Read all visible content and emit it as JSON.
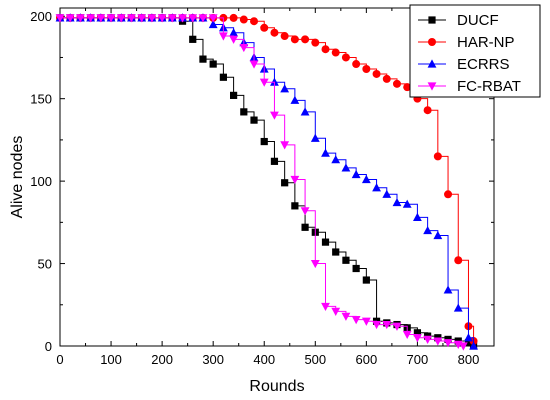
{
  "chart_data": {
    "type": "line",
    "xlabel": "Rounds",
    "ylabel": "Alive nodes",
    "xlim": [
      0,
      850
    ],
    "ylim": [
      0,
      205
    ],
    "x_ticks": [
      0,
      100,
      200,
      300,
      400,
      500,
      600,
      700,
      800
    ],
    "y_ticks": [
      0,
      50,
      100,
      150,
      200
    ],
    "grid": false,
    "legend_position": "top-right",
    "series": [
      {
        "name": "DUCF",
        "color": "#000000",
        "marker": "square",
        "points": [
          [
            0,
            199
          ],
          [
            20,
            199
          ],
          [
            40,
            199
          ],
          [
            60,
            199
          ],
          [
            80,
            199
          ],
          [
            100,
            199
          ],
          [
            120,
            199
          ],
          [
            140,
            199
          ],
          [
            160,
            199
          ],
          [
            180,
            199
          ],
          [
            200,
            199
          ],
          [
            220,
            199
          ],
          [
            240,
            197
          ],
          [
            260,
            186
          ],
          [
            280,
            174
          ],
          [
            300,
            171
          ],
          [
            320,
            163
          ],
          [
            340,
            152
          ],
          [
            360,
            142
          ],
          [
            380,
            137
          ],
          [
            400,
            124
          ],
          [
            420,
            112
          ],
          [
            440,
            99
          ],
          [
            460,
            85
          ],
          [
            480,
            72
          ],
          [
            500,
            69
          ],
          [
            520,
            63
          ],
          [
            540,
            57
          ],
          [
            560,
            52
          ],
          [
            580,
            47
          ],
          [
            600,
            40
          ],
          [
            620,
            15
          ],
          [
            640,
            14
          ],
          [
            660,
            13
          ],
          [
            680,
            11
          ],
          [
            700,
            8
          ],
          [
            720,
            6
          ],
          [
            740,
            5
          ],
          [
            760,
            4
          ],
          [
            780,
            3
          ],
          [
            800,
            2
          ],
          [
            810,
            0
          ]
        ]
      },
      {
        "name": "HAR-NP",
        "color": "#ff0000",
        "marker": "circle",
        "points": [
          [
            0,
            199
          ],
          [
            20,
            199
          ],
          [
            40,
            199
          ],
          [
            60,
            199
          ],
          [
            80,
            199
          ],
          [
            100,
            199
          ],
          [
            120,
            199
          ],
          [
            140,
            199
          ],
          [
            160,
            199
          ],
          [
            180,
            199
          ],
          [
            200,
            199
          ],
          [
            220,
            199
          ],
          [
            240,
            199
          ],
          [
            260,
            199
          ],
          [
            280,
            199
          ],
          [
            300,
            199
          ],
          [
            320,
            199
          ],
          [
            340,
            199
          ],
          [
            360,
            198
          ],
          [
            380,
            197
          ],
          [
            400,
            193
          ],
          [
            420,
            190
          ],
          [
            440,
            188
          ],
          [
            460,
            186
          ],
          [
            480,
            186
          ],
          [
            500,
            184
          ],
          [
            520,
            180
          ],
          [
            540,
            178
          ],
          [
            560,
            175
          ],
          [
            580,
            171
          ],
          [
            600,
            168
          ],
          [
            620,
            165
          ],
          [
            640,
            162
          ],
          [
            660,
            159
          ],
          [
            680,
            157
          ],
          [
            700,
            150
          ],
          [
            720,
            143
          ],
          [
            740,
            115
          ],
          [
            760,
            92
          ],
          [
            780,
            52
          ],
          [
            800,
            12
          ],
          [
            810,
            3
          ]
        ]
      },
      {
        "name": "ECRRS",
        "color": "#0000ff",
        "marker": "triangle-up",
        "points": [
          [
            0,
            199
          ],
          [
            20,
            199
          ],
          [
            40,
            199
          ],
          [
            60,
            199
          ],
          [
            80,
            199
          ],
          [
            100,
            199
          ],
          [
            120,
            199
          ],
          [
            140,
            199
          ],
          [
            160,
            199
          ],
          [
            180,
            199
          ],
          [
            200,
            199
          ],
          [
            220,
            199
          ],
          [
            240,
            199
          ],
          [
            260,
            199
          ],
          [
            280,
            199
          ],
          [
            300,
            195
          ],
          [
            320,
            193
          ],
          [
            340,
            190
          ],
          [
            360,
            184
          ],
          [
            380,
            175
          ],
          [
            400,
            168
          ],
          [
            420,
            160
          ],
          [
            440,
            156
          ],
          [
            460,
            149
          ],
          [
            480,
            142
          ],
          [
            500,
            126
          ],
          [
            520,
            117
          ],
          [
            540,
            113
          ],
          [
            560,
            108
          ],
          [
            580,
            104
          ],
          [
            600,
            101
          ],
          [
            620,
            96
          ],
          [
            640,
            92
          ],
          [
            660,
            87
          ],
          [
            680,
            86
          ],
          [
            700,
            78
          ],
          [
            720,
            70
          ],
          [
            740,
            67
          ],
          [
            760,
            34
          ],
          [
            780,
            23
          ],
          [
            800,
            5
          ],
          [
            810,
            0
          ]
        ]
      },
      {
        "name": "FC-RBAT",
        "color": "#ff00ff",
        "marker": "triangle-down",
        "points": [
          [
            0,
            199
          ],
          [
            20,
            199
          ],
          [
            40,
            199
          ],
          [
            60,
            199
          ],
          [
            80,
            199
          ],
          [
            100,
            199
          ],
          [
            120,
            199
          ],
          [
            140,
            199
          ],
          [
            160,
            199
          ],
          [
            180,
            199
          ],
          [
            200,
            199
          ],
          [
            220,
            199
          ],
          [
            240,
            199
          ],
          [
            260,
            199
          ],
          [
            280,
            199
          ],
          [
            300,
            199
          ],
          [
            320,
            188
          ],
          [
            340,
            186
          ],
          [
            360,
            181
          ],
          [
            380,
            171
          ],
          [
            400,
            160
          ],
          [
            420,
            140
          ],
          [
            440,
            122
          ],
          [
            460,
            101
          ],
          [
            480,
            82
          ],
          [
            500,
            50
          ],
          [
            520,
            24
          ],
          [
            540,
            21
          ],
          [
            560,
            18
          ],
          [
            580,
            16
          ],
          [
            600,
            15
          ],
          [
            620,
            13
          ],
          [
            640,
            13
          ],
          [
            660,
            12
          ],
          [
            680,
            7
          ],
          [
            700,
            5
          ],
          [
            720,
            4
          ],
          [
            740,
            3
          ],
          [
            760,
            2
          ],
          [
            780,
            1
          ],
          [
            790,
            0
          ]
        ]
      }
    ]
  }
}
